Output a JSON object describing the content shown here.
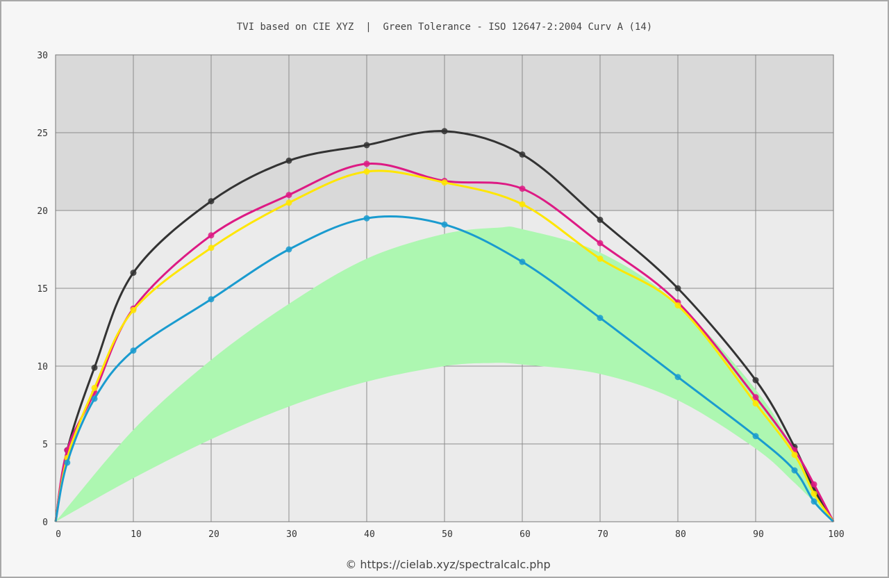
{
  "title": "TVI based on CIE XYZ  |  Green Tolerance - ISO 12647-2:2004 Curv A (14)",
  "credit": "© https://cielab.xyz/spectralcalc.php",
  "colors": {
    "plot_band_upper": "#d9d9d9",
    "plot_band_lower": "#ebebeb",
    "grid": "#8c8c8c",
    "tolerance_fill": "#adf7b1",
    "black": "#333333",
    "magenta": "#dd1a84",
    "yellow": "#ffe600",
    "cyan": "#1a9bcf"
  },
  "chart_data": {
    "type": "line",
    "title": "TVI based on CIE XYZ  |  Green Tolerance - ISO 12647-2:2004 Curv A (14)",
    "xlabel": "",
    "ylabel": "",
    "xlim": [
      0,
      100
    ],
    "ylim": [
      0,
      30
    ],
    "x_ticks": [
      "0",
      "10",
      "20",
      "30",
      "40",
      "50",
      "60",
      "70",
      "80",
      "90",
      "100"
    ],
    "y_ticks": [
      "0",
      "5",
      "10",
      "15",
      "20",
      "25",
      "30"
    ],
    "grid": true,
    "legend": "none",
    "x": [
      0,
      1.5,
      5,
      10,
      20,
      30,
      40,
      50,
      60,
      70,
      80,
      90,
      95,
      97.5,
      100
    ],
    "tolerance_band": {
      "color": "green",
      "upper": [
        [
          0,
          0
        ],
        [
          10,
          5.9
        ],
        [
          20,
          10.4
        ],
        [
          30,
          14.0
        ],
        [
          40,
          16.9
        ],
        [
          50,
          18.5
        ],
        [
          57,
          18.9
        ],
        [
          60,
          18.8
        ],
        [
          70,
          17.3
        ],
        [
          80,
          14.0
        ],
        [
          90,
          8.5
        ],
        [
          95,
          4.6
        ],
        [
          100,
          0
        ]
      ],
      "lower": [
        [
          0,
          0
        ],
        [
          10,
          2.8
        ],
        [
          20,
          5.3
        ],
        [
          30,
          7.4
        ],
        [
          40,
          9.0
        ],
        [
          50,
          10.0
        ],
        [
          56,
          10.2
        ],
        [
          60,
          10.1
        ],
        [
          70,
          9.5
        ],
        [
          80,
          7.8
        ],
        [
          90,
          4.7
        ],
        [
          95,
          2.5
        ],
        [
          100,
          0
        ]
      ]
    },
    "series": [
      {
        "color": "black",
        "values": [
          0,
          4.6,
          9.9,
          16.0,
          20.6,
          23.2,
          24.2,
          25.1,
          23.6,
          19.4,
          15.0,
          9.1,
          4.8,
          2.1,
          0
        ]
      },
      {
        "color": "magenta",
        "values": [
          0,
          4.6,
          8.3,
          13.7,
          18.4,
          21.0,
          23.0,
          21.9,
          21.4,
          17.9,
          14.1,
          8.0,
          4.6,
          2.4,
          0
        ]
      },
      {
        "color": "yellow",
        "values": [
          0,
          4.1,
          8.6,
          13.6,
          17.6,
          20.5,
          22.5,
          21.8,
          20.4,
          16.9,
          13.9,
          7.6,
          4.3,
          1.8,
          0
        ]
      },
      {
        "color": "cyan",
        "values": [
          0,
          3.8,
          7.9,
          11.0,
          14.3,
          17.5,
          19.5,
          19.1,
          16.7,
          13.1,
          9.3,
          5.5,
          3.3,
          1.3,
          0
        ]
      }
    ]
  }
}
